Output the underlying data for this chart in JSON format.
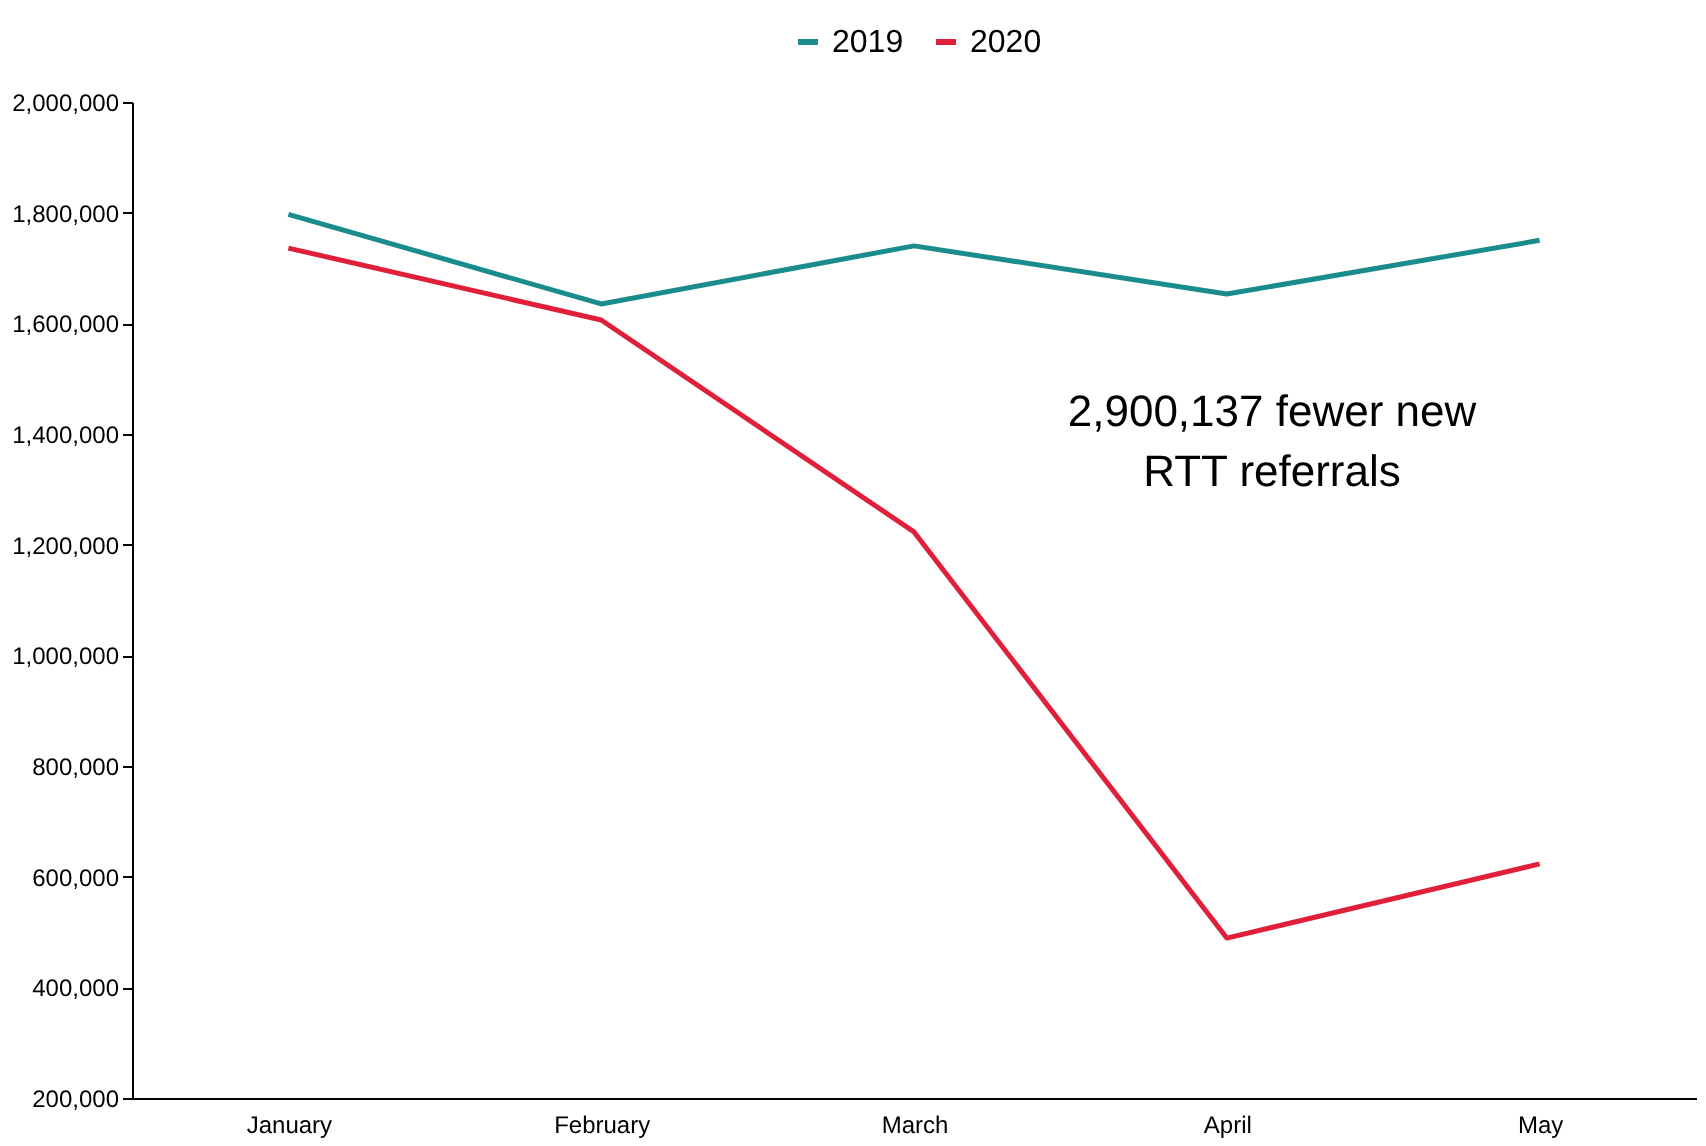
{
  "chart_data": {
    "type": "line",
    "categories": [
      "January",
      "February",
      "March",
      "April",
      "May"
    ],
    "series": [
      {
        "name": "2019",
        "color": "#1a8c8c",
        "values": [
          1797000,
          1635000,
          1740000,
          1653000,
          1750000
        ]
      },
      {
        "name": "2020",
        "color": "#e0203a",
        "values": [
          1736000,
          1606000,
          1223000,
          489000,
          623000
        ]
      }
    ],
    "ylim": [
      200000,
      2000000
    ],
    "yticks": [
      {
        "value": 200000,
        "label": "200,000"
      },
      {
        "value": 400000,
        "label": "400,000"
      },
      {
        "value": 600000,
        "label": "600,000"
      },
      {
        "value": 800000,
        "label": "800,000"
      },
      {
        "value": 1000000,
        "label": "1,000,000"
      },
      {
        "value": 1200000,
        "label": "1,200,000"
      },
      {
        "value": 1400000,
        "label": "1,400,000"
      },
      {
        "value": 1600000,
        "label": "1,600,000"
      },
      {
        "value": 1800000,
        "label": "1,800,000"
      },
      {
        "value": 2000000,
        "label": "2,000,000"
      }
    ],
    "annotations": [
      "2,900,137 fewer new\nRTT referrals"
    ],
    "grid": false,
    "legend": "top",
    "marker": "none",
    "line_style": "solid"
  }
}
